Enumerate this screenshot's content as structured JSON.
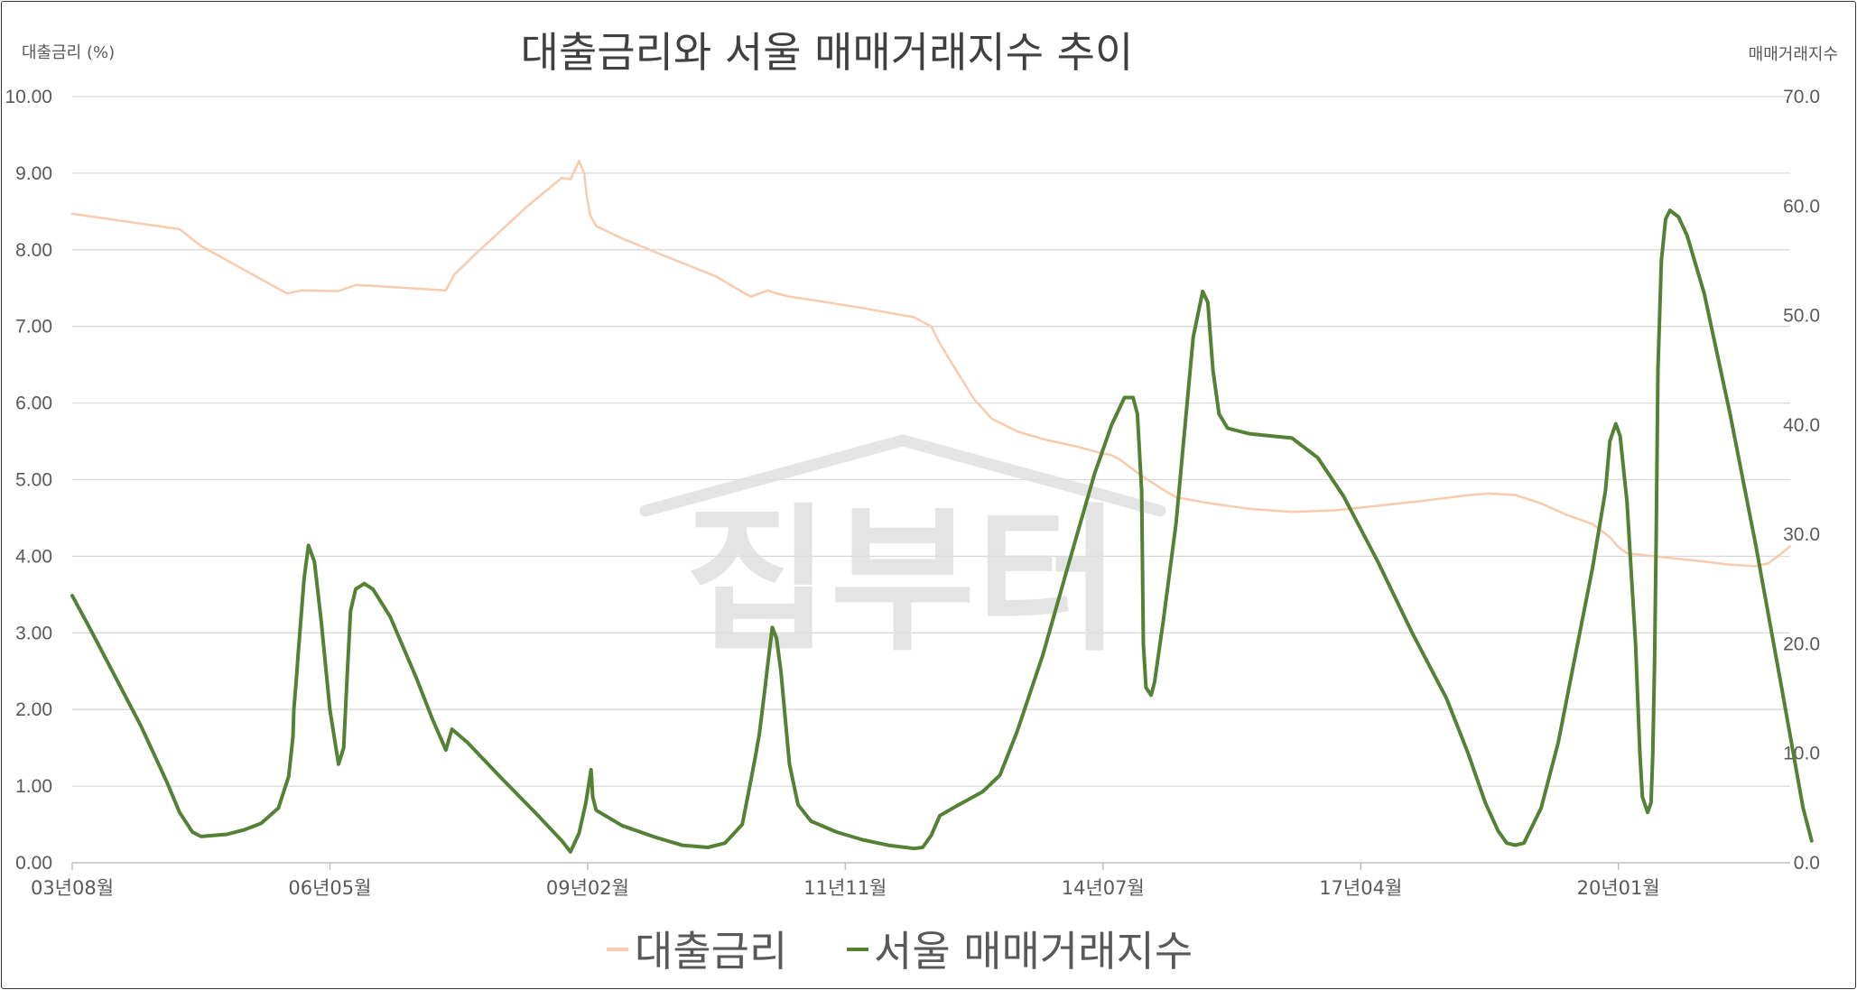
{
  "chart_data": {
    "type": "line",
    "title": "대출금리와 서울 매매거래지수 추이",
    "ylabel_left": "대출금리 (%)",
    "ylabel_right": "매매거래지수",
    "ylim_left": [
      0,
      10
    ],
    "ylim_right": [
      0,
      70
    ],
    "yticks_left": [
      "0.00",
      "1.00",
      "2.00",
      "3.00",
      "4.00",
      "5.00",
      "6.00",
      "7.00",
      "8.00",
      "9.00",
      "10.00"
    ],
    "yticks_right": [
      "0.0",
      "10.0",
      "20.0",
      "30.0",
      "40.0",
      "50.0",
      "60.0",
      "70.0"
    ],
    "x_range": [
      0,
      200
    ],
    "x_tick_labels": [
      {
        "x": 0,
        "label": "03년08월"
      },
      {
        "x": 30,
        "label": "06년05월"
      },
      {
        "x": 60,
        "label": "09년02월"
      },
      {
        "x": 90,
        "label": "11년11월"
      },
      {
        "x": 120,
        "label": "14년07월"
      },
      {
        "x": 150,
        "label": "17년04월"
      },
      {
        "x": 180,
        "label": "20년01월"
      }
    ],
    "grid": true,
    "legend_position": "bottom",
    "series": [
      {
        "name": "대출금리",
        "axis": "left",
        "color": "#f8cbad",
        "points": [
          [
            0,
            8.47
          ],
          [
            12.5,
            8.27
          ],
          [
            15,
            8.05
          ],
          [
            25,
            7.43
          ],
          [
            26.7,
            7.47
          ],
          [
            31,
            7.46
          ],
          [
            33,
            7.54
          ],
          [
            35,
            7.53
          ],
          [
            43.5,
            7.47
          ],
          [
            44.5,
            7.68
          ],
          [
            47,
            7.95
          ],
          [
            53,
            8.57
          ],
          [
            57,
            8.94
          ],
          [
            58,
            8.92
          ],
          [
            58.6,
            9.06
          ],
          [
            59,
            9.16
          ],
          [
            59.6,
            9.0
          ],
          [
            59.9,
            8.7
          ],
          [
            60.3,
            8.45
          ],
          [
            61,
            8.31
          ],
          [
            64,
            8.15
          ],
          [
            69,
            7.92
          ],
          [
            75,
            7.65
          ],
          [
            78,
            7.45
          ],
          [
            79,
            7.39
          ],
          [
            80,
            7.43
          ],
          [
            81,
            7.47
          ],
          [
            82,
            7.43
          ],
          [
            83.5,
            7.39
          ],
          [
            87,
            7.33
          ],
          [
            92,
            7.24
          ],
          [
            98,
            7.12
          ],
          [
            100,
            7.0
          ],
          [
            101,
            6.78
          ],
          [
            102.5,
            6.5
          ],
          [
            105,
            6.05
          ],
          [
            107,
            5.8
          ],
          [
            110,
            5.63
          ],
          [
            113,
            5.53
          ],
          [
            117,
            5.43
          ],
          [
            120,
            5.34
          ],
          [
            121,
            5.32
          ],
          [
            122,
            5.26
          ],
          [
            124.5,
            5.05
          ],
          [
            127,
            4.87
          ],
          [
            128.5,
            4.77
          ],
          [
            132,
            4.7
          ],
          [
            137,
            4.62
          ],
          [
            142,
            4.58
          ],
          [
            147,
            4.6
          ],
          [
            152,
            4.66
          ],
          [
            157,
            4.72
          ],
          [
            162,
            4.79
          ],
          [
            165,
            4.82
          ],
          [
            168,
            4.8
          ],
          [
            171,
            4.69
          ],
          [
            174,
            4.54
          ],
          [
            177,
            4.42
          ],
          [
            179,
            4.25
          ],
          [
            180,
            4.12
          ],
          [
            181,
            4.04
          ],
          [
            185,
            3.99
          ],
          [
            190,
            3.93
          ],
          [
            193,
            3.89
          ],
          [
            196,
            3.87
          ],
          [
            197.5,
            3.91
          ],
          [
            199,
            4.04
          ],
          [
            200,
            4.13
          ]
        ]
      },
      {
        "name": "서울 매매거래지수",
        "axis": "right",
        "color": "#548235",
        "points": [
          [
            0,
            24.4
          ],
          [
            2,
            21.5
          ],
          [
            5,
            17.0
          ],
          [
            8,
            12.5
          ],
          [
            11,
            7.4
          ],
          [
            12.5,
            4.6
          ],
          [
            14,
            2.8
          ],
          [
            15,
            2.4
          ],
          [
            18,
            2.6
          ],
          [
            20,
            3.0
          ],
          [
            22,
            3.6
          ],
          [
            24,
            5.0
          ],
          [
            25.2,
            7.9
          ],
          [
            25.7,
            11.5
          ],
          [
            25.8,
            14.0
          ],
          [
            26.1,
            16.8
          ],
          [
            26.3,
            19.0
          ],
          [
            27,
            26.0
          ],
          [
            27.5,
            29.0
          ],
          [
            28.2,
            27.5
          ],
          [
            29,
            22.0
          ],
          [
            30,
            14.0
          ],
          [
            31,
            9.0
          ],
          [
            31.6,
            10.5
          ],
          [
            32,
            17.0
          ],
          [
            32.4,
            23.0
          ],
          [
            33,
            25.0
          ],
          [
            34,
            25.5
          ],
          [
            35,
            25.0
          ],
          [
            37,
            22.5
          ],
          [
            40,
            17.0
          ],
          [
            42,
            13.0
          ],
          [
            43.5,
            10.3
          ],
          [
            44.2,
            12.2
          ],
          [
            46,
            11.0
          ],
          [
            50,
            7.7
          ],
          [
            54,
            4.5
          ],
          [
            57,
            2.0
          ],
          [
            58,
            1.0
          ],
          [
            59,
            2.7
          ],
          [
            59.8,
            5.5
          ],
          [
            60.4,
            8.5
          ],
          [
            60.6,
            6.0
          ],
          [
            61,
            4.8
          ],
          [
            64,
            3.4
          ],
          [
            68,
            2.3
          ],
          [
            71,
            1.6
          ],
          [
            74,
            1.4
          ],
          [
            76,
            1.8
          ],
          [
            78,
            3.5
          ],
          [
            79,
            7.5
          ],
          [
            79.6,
            10.0
          ],
          [
            80,
            11.8
          ],
          [
            80.7,
            16.3
          ],
          [
            81,
            18.3
          ],
          [
            81.5,
            21.5
          ],
          [
            82,
            20.5
          ],
          [
            82.5,
            17.5
          ],
          [
            83.5,
            9.0
          ],
          [
            84.5,
            5.3
          ],
          [
            86,
            3.8
          ],
          [
            89,
            2.8
          ],
          [
            92,
            2.1
          ],
          [
            95,
            1.6
          ],
          [
            98,
            1.3
          ],
          [
            99,
            1.4
          ],
          [
            100,
            2.5
          ],
          [
            101,
            4.3
          ],
          [
            103,
            5.2
          ],
          [
            106,
            6.5
          ],
          [
            108,
            8.0
          ],
          [
            110,
            12.0
          ],
          [
            113,
            19.0
          ],
          [
            116,
            27.3
          ],
          [
            119,
            35.5
          ],
          [
            121,
            40.0
          ],
          [
            122.5,
            42.5
          ],
          [
            123.5,
            42.5
          ],
          [
            124,
            41.0
          ],
          [
            124.5,
            34.0
          ],
          [
            124.7,
            20.0
          ],
          [
            125,
            16.0
          ],
          [
            125.6,
            15.3
          ],
          [
            126,
            16.5
          ],
          [
            127,
            22.0
          ],
          [
            128.5,
            31.0
          ],
          [
            129.5,
            39.5
          ],
          [
            130.5,
            48.0
          ],
          [
            131.6,
            52.2
          ],
          [
            132.2,
            51.2
          ],
          [
            132.8,
            45.0
          ],
          [
            133.5,
            41.0
          ],
          [
            134.5,
            39.7
          ],
          [
            137,
            39.2
          ],
          [
            142,
            38.8
          ],
          [
            145,
            37.0
          ],
          [
            148,
            33.5
          ],
          [
            152,
            27.5
          ],
          [
            156,
            21.0
          ],
          [
            160,
            15.0
          ],
          [
            162.5,
            10.0
          ],
          [
            164.5,
            5.5
          ],
          [
            166,
            2.9
          ],
          [
            167,
            1.8
          ],
          [
            168,
            1.6
          ],
          [
            169,
            1.8
          ],
          [
            171,
            5.0
          ],
          [
            173,
            11.0
          ],
          [
            175,
            19.0
          ],
          [
            177,
            27.0
          ],
          [
            178.5,
            34.0
          ],
          [
            179,
            38.5
          ],
          [
            179.7,
            40.1
          ],
          [
            180.2,
            39.0
          ],
          [
            181,
            33.0
          ],
          [
            182,
            20.0
          ],
          [
            182.5,
            10.0
          ],
          [
            182.8,
            6.0
          ],
          [
            183.4,
            4.6
          ],
          [
            183.8,
            5.5
          ],
          [
            184,
            10.0
          ],
          [
            184.2,
            18.0
          ],
          [
            184.4,
            30.0
          ],
          [
            184.6,
            45.0
          ],
          [
            185,
            55.0
          ],
          [
            185.5,
            58.8
          ],
          [
            186,
            59.6
          ],
          [
            187,
            59.0
          ],
          [
            188,
            57.3
          ],
          [
            190,
            52.0
          ],
          [
            193,
            41.0
          ],
          [
            196,
            29.0
          ],
          [
            199,
            16.0
          ],
          [
            201.5,
            5.0
          ],
          [
            202.5,
            2.0
          ]
        ]
      }
    ]
  },
  "watermark": {
    "text": "집부터"
  }
}
